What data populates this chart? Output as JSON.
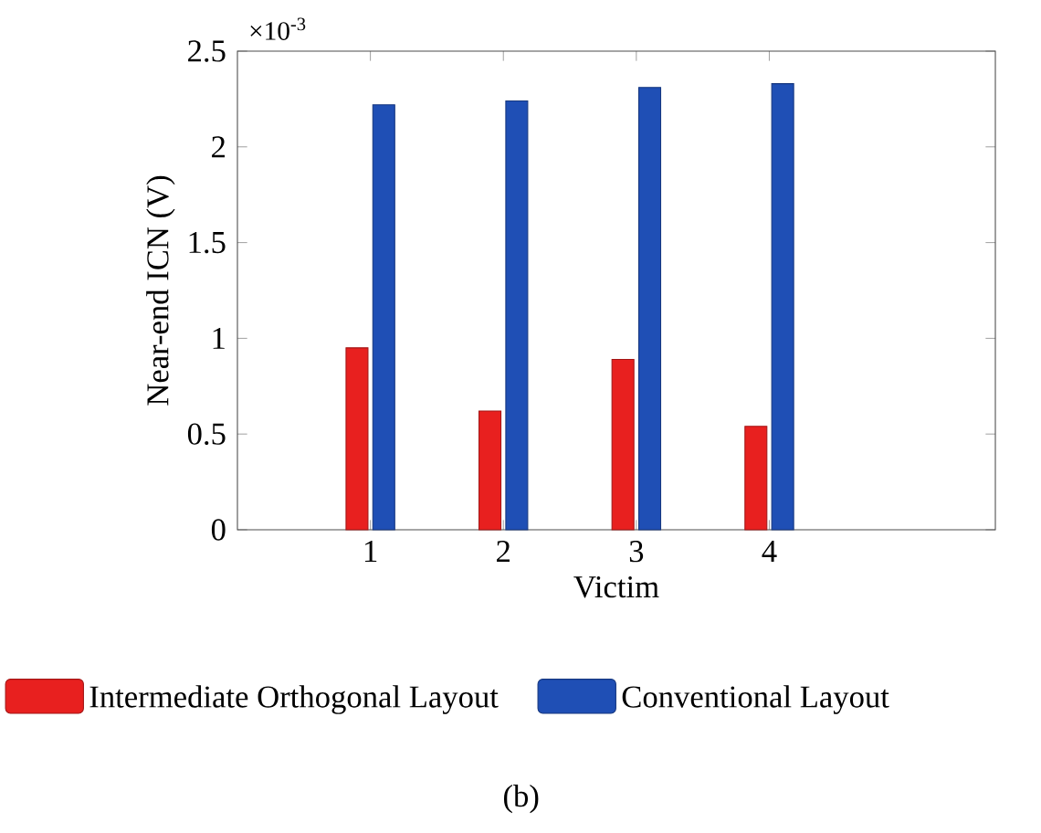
{
  "chart_data": {
    "type": "bar",
    "xlabel": "Victim",
    "ylabel": "Near-end ICN (V)",
    "categories": [
      "1",
      "2",
      "3",
      "4"
    ],
    "series": [
      {
        "name": "Intermediate Orthogonal Layout",
        "color": "#e8201f",
        "values": [
          0.95,
          0.62,
          0.89,
          0.54
        ]
      },
      {
        "name": "Conventional Layout",
        "color": "#1f4fb5",
        "values": [
          2.22,
          2.24,
          2.31,
          2.33
        ]
      }
    ],
    "ylim": [
      0,
      2.5
    ],
    "yticks": [
      0,
      0.5,
      1,
      1.5,
      2,
      2.5
    ],
    "legend": "bottom",
    "grid": false,
    "annotations": [
      "×10$^{-3}$",
      "(b)"
    ]
  }
}
